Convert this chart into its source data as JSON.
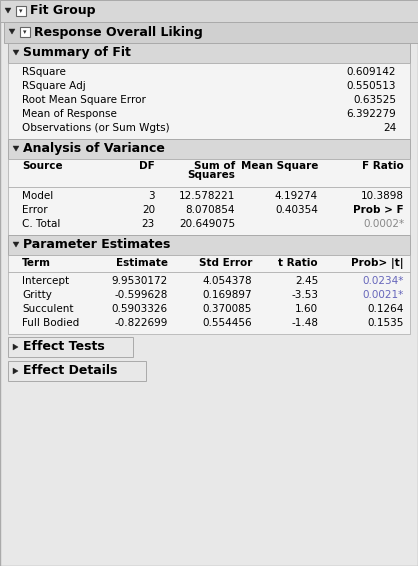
{
  "bg_outer": "#e8e8e8",
  "bg_white": "#f8f8f8",
  "bg_header1": "#d4d4d4",
  "bg_header2": "#c8c8c8",
  "bg_section": "#d0d0d0",
  "bg_subsection": "#e0e0e0",
  "blue_text": "#6666bb",
  "gray_text": "#888888",
  "black": "#000000",
  "border": "#999999",
  "fit_group_label": "Fit Group",
  "response_label": "Response Overall Liking",
  "summary_title": "Summary of Fit",
  "summary_rows": [
    [
      "RSquare",
      "0.609142"
    ],
    [
      "RSquare Adj",
      "0.550513"
    ],
    [
      "Root Mean Square Error",
      "0.63525"
    ],
    [
      "Mean of Response",
      "6.392279"
    ],
    [
      "Observations (or Sum Wgts)",
      "24"
    ]
  ],
  "anova_title": "Analysis of Variance",
  "anova_rows": [
    [
      "Model",
      "3",
      "12.578221",
      "4.19274",
      "10.3898"
    ],
    [
      "Error",
      "20",
      "8.070854",
      "0.40354",
      "Prob > F"
    ],
    [
      "C. Total",
      "23",
      "20.649075",
      "",
      "0.0002*"
    ]
  ],
  "param_title": "Parameter Estimates",
  "param_rows": [
    [
      "Intercept",
      "9.9530172",
      "4.054378",
      "2.45",
      "0.0234*"
    ],
    [
      "Gritty",
      "-0.599628",
      "0.169897",
      "-3.53",
      "0.0021*"
    ],
    [
      "Succulent",
      "0.5903326",
      "0.370085",
      "1.60",
      "0.1264"
    ],
    [
      "Full Bodied",
      "-0.822699",
      "0.554456",
      "-1.48",
      "0.1535"
    ]
  ],
  "param_blue_rows": [
    0,
    1
  ],
  "effect_tests_label": "Effect Tests",
  "effect_details_label": "Effect Details",
  "fig_w": 4.18,
  "fig_h": 5.66,
  "dpi": 100
}
